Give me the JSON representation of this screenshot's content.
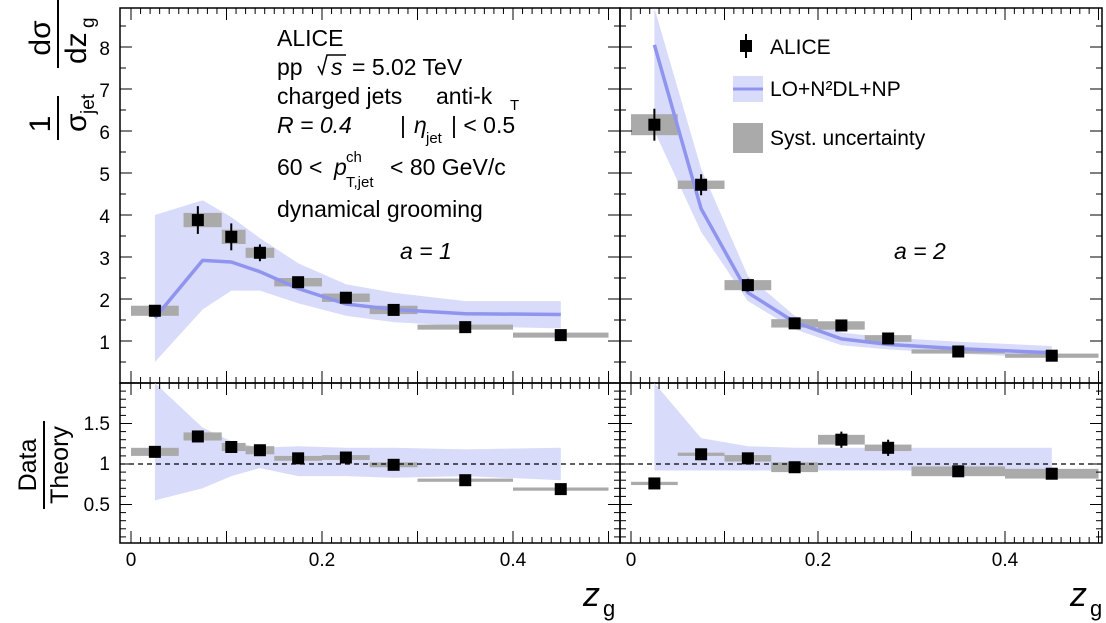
{
  "colors": {
    "band": "#d9dbfa",
    "line": "#8f94ee",
    "syst": "#aaaaaa",
    "data": "#000000"
  },
  "axes": {
    "x_ticks": [
      "0",
      "0.2",
      "0.4"
    ],
    "xlabel_main": "z",
    "xlabel_sub": "g",
    "top_ticks": [
      "1",
      "2",
      "3",
      "4",
      "5",
      "6",
      "7",
      "8"
    ],
    "ratio_ticks": [
      "0.5",
      "1",
      "1.5"
    ],
    "ylabel_top": {
      "num": "1",
      "den": "σ",
      "den_sub": "jet",
      "dnum": "dσ",
      "dden": "dz",
      "dden_sub": "g"
    },
    "ylabel_ratio": {
      "num": "Data",
      "den": "Theory"
    }
  },
  "annotations": {
    "line1": "ALICE",
    "line2_pp": "pp",
    "line2_energy": "= 5.02 TeV",
    "line3_a": "charged jets",
    "line3_b": "anti-k",
    "line3_sub": "T",
    "line4_R": "R = 0.4",
    "line4_eta_sub": "jet",
    "line4_eta_rest": "| < 0.5",
    "line5_a": "60 <",
    "line5_p": "p",
    "line5_sup": "ch",
    "line5_sub": "T,jet",
    "line5_b": "< 80 GeV/c",
    "line6": "dynamical grooming",
    "panel_left": "a = 1",
    "panel_right": "a = 2"
  },
  "legend": {
    "data": "ALICE",
    "theory": "LO+N²DL+NP",
    "syst": "Syst. uncertainty"
  },
  "chart_data": [
    {
      "panel": "a = 1, distribution",
      "type": "scatter",
      "x_range": [
        0,
        0.5
      ],
      "y_range": [
        0,
        9
      ],
      "points": [
        {
          "x": 0.025,
          "y": 1.72,
          "err": 0.07,
          "xlo": 0.0,
          "xhi": 0.05,
          "syst": 0.12
        },
        {
          "x": 0.07,
          "y": 3.88,
          "err": 0.33,
          "xlo": 0.055,
          "xhi": 0.095,
          "syst": 0.17
        },
        {
          "x": 0.105,
          "y": 3.48,
          "err": 0.32,
          "xlo": 0.095,
          "xhi": 0.12,
          "syst": 0.17
        },
        {
          "x": 0.135,
          "y": 3.1,
          "err": 0.2,
          "xlo": 0.12,
          "xhi": 0.15,
          "syst": 0.12
        },
        {
          "x": 0.175,
          "y": 2.4,
          "err": 0.1,
          "xlo": 0.15,
          "xhi": 0.2,
          "syst": 0.1
        },
        {
          "x": 0.225,
          "y": 2.03,
          "err": 0.1,
          "xlo": 0.2,
          "xhi": 0.25,
          "syst": 0.1
        },
        {
          "x": 0.275,
          "y": 1.74,
          "err": 0.1,
          "xlo": 0.25,
          "xhi": 0.3,
          "syst": 0.1
        },
        {
          "x": 0.35,
          "y": 1.33,
          "err": 0.05,
          "xlo": 0.3,
          "xhi": 0.4,
          "syst": 0.06
        },
        {
          "x": 0.45,
          "y": 1.14,
          "err": 0.05,
          "xlo": 0.4,
          "xhi": 0.5,
          "syst": 0.06
        }
      ],
      "theory": {
        "x": [
          0.025,
          0.075,
          0.105,
          0.135,
          0.175,
          0.225,
          0.275,
          0.35,
          0.45
        ],
        "y": [
          1.55,
          2.92,
          2.88,
          2.65,
          2.25,
          1.88,
          1.75,
          1.65,
          1.63
        ],
        "lo": [
          0.5,
          1.75,
          2.2,
          2.2,
          1.9,
          1.6,
          1.45,
          1.35,
          1.3
        ],
        "hi": [
          4.0,
          4.35,
          3.95,
          3.45,
          2.85,
          2.35,
          2.15,
          1.95,
          1.95
        ]
      }
    },
    {
      "panel": "a = 2, distribution",
      "type": "scatter",
      "x_range": [
        0,
        0.5
      ],
      "y_range": [
        0,
        9
      ],
      "points": [
        {
          "x": 0.025,
          "y": 6.15,
          "err": 0.38,
          "xlo": 0.0,
          "xhi": 0.05,
          "syst": 0.25
        },
        {
          "x": 0.075,
          "y": 4.72,
          "err": 0.25,
          "xlo": 0.05,
          "xhi": 0.1,
          "syst": 0.1
        },
        {
          "x": 0.125,
          "y": 2.33,
          "err": 0.15,
          "xlo": 0.1,
          "xhi": 0.15,
          "syst": 0.12
        },
        {
          "x": 0.175,
          "y": 1.42,
          "err": 0.1,
          "xlo": 0.15,
          "xhi": 0.2,
          "syst": 0.1
        },
        {
          "x": 0.225,
          "y": 1.37,
          "err": 0.08,
          "xlo": 0.2,
          "xhi": 0.25,
          "syst": 0.1
        },
        {
          "x": 0.275,
          "y": 1.06,
          "err": 0.06,
          "xlo": 0.25,
          "xhi": 0.3,
          "syst": 0.08
        },
        {
          "x": 0.35,
          "y": 0.75,
          "err": 0.05,
          "xlo": 0.3,
          "xhi": 0.4,
          "syst": 0.05
        },
        {
          "x": 0.45,
          "y": 0.65,
          "err": 0.04,
          "xlo": 0.4,
          "xhi": 0.5,
          "syst": 0.05
        }
      ],
      "theory": {
        "x": [
          0.025,
          0.075,
          0.125,
          0.175,
          0.225,
          0.275,
          0.35,
          0.45
        ],
        "y": [
          8.05,
          4.15,
          2.15,
          1.45,
          1.05,
          0.92,
          0.82,
          0.72
        ],
        "lo": [
          6.0,
          3.6,
          1.95,
          1.28,
          0.9,
          0.8,
          0.7,
          0.6
        ],
        "hi": [
          9.3,
          5.1,
          2.55,
          1.6,
          1.2,
          1.08,
          0.98,
          0.88
        ]
      }
    },
    {
      "panel": "a = 1, ratio",
      "type": "scatter",
      "x_range": [
        0,
        0.5
      ],
      "y_range": [
        0,
        2
      ],
      "reference_line": 1,
      "points": [
        {
          "x": 0.025,
          "y": 1.15,
          "err": 0.07,
          "xlo": 0.0,
          "xhi": 0.05,
          "syst": 0.05
        },
        {
          "x": 0.07,
          "y": 1.34,
          "err": 0.07,
          "xlo": 0.055,
          "xhi": 0.095,
          "syst": 0.05
        },
        {
          "x": 0.105,
          "y": 1.21,
          "err": 0.07,
          "xlo": 0.095,
          "xhi": 0.12,
          "syst": 0.05
        },
        {
          "x": 0.135,
          "y": 1.17,
          "err": 0.06,
          "xlo": 0.12,
          "xhi": 0.15,
          "syst": 0.05
        },
        {
          "x": 0.175,
          "y": 1.07,
          "err": 0.03,
          "xlo": 0.15,
          "xhi": 0.2,
          "syst": 0.03
        },
        {
          "x": 0.225,
          "y": 1.08,
          "err": 0.03,
          "xlo": 0.2,
          "xhi": 0.25,
          "syst": 0.03
        },
        {
          "x": 0.275,
          "y": 0.99,
          "err": 0.05,
          "xlo": 0.25,
          "xhi": 0.3,
          "syst": 0.03
        },
        {
          "x": 0.35,
          "y": 0.8,
          "err": 0.02,
          "xlo": 0.3,
          "xhi": 0.4,
          "syst": 0.02
        },
        {
          "x": 0.45,
          "y": 0.69,
          "err": 0.02,
          "xlo": 0.4,
          "xhi": 0.5,
          "syst": 0.02
        }
      ],
      "band": {
        "x": [
          0.025,
          0.075,
          0.105,
          0.135,
          0.175,
          0.225,
          0.275,
          0.35,
          0.45
        ],
        "lo": [
          0.55,
          0.7,
          0.85,
          0.95,
          0.85,
          0.85,
          0.83,
          0.85,
          0.8
        ],
        "hi": [
          2.0,
          1.45,
          1.28,
          1.2,
          1.22,
          1.2,
          1.2,
          1.18,
          1.2
        ]
      }
    },
    {
      "panel": "a = 2, ratio",
      "type": "scatter",
      "x_range": [
        0,
        0.5
      ],
      "y_range": [
        0,
        2
      ],
      "reference_line": 1,
      "points": [
        {
          "x": 0.025,
          "y": 0.76,
          "err": 0.03,
          "xlo": 0.0,
          "xhi": 0.05,
          "syst": 0.02
        },
        {
          "x": 0.075,
          "y": 1.12,
          "err": 0.03,
          "xlo": 0.05,
          "xhi": 0.1,
          "syst": 0.02
        },
        {
          "x": 0.125,
          "y": 1.07,
          "err": 0.06,
          "xlo": 0.1,
          "xhi": 0.15,
          "syst": 0.04
        },
        {
          "x": 0.175,
          "y": 0.96,
          "err": 0.06,
          "xlo": 0.15,
          "xhi": 0.2,
          "syst": 0.06
        },
        {
          "x": 0.225,
          "y": 1.3,
          "err": 0.1,
          "xlo": 0.2,
          "xhi": 0.25,
          "syst": 0.06
        },
        {
          "x": 0.275,
          "y": 1.2,
          "err": 0.1,
          "xlo": 0.25,
          "xhi": 0.3,
          "syst": 0.04
        },
        {
          "x": 0.35,
          "y": 0.91,
          "err": 0.05,
          "xlo": 0.3,
          "xhi": 0.4,
          "syst": 0.06
        },
        {
          "x": 0.45,
          "y": 0.88,
          "err": 0.05,
          "xlo": 0.4,
          "xhi": 0.5,
          "syst": 0.06
        }
      ],
      "band": {
        "x": [
          0.025,
          0.075,
          0.125,
          0.175,
          0.225,
          0.275,
          0.35,
          0.45
        ],
        "lo": [
          0.92,
          0.92,
          0.92,
          0.92,
          0.92,
          0.92,
          0.92,
          0.92
        ],
        "hi": [
          2.0,
          1.32,
          1.22,
          1.2,
          1.2,
          1.2,
          1.2,
          1.2
        ]
      }
    }
  ]
}
